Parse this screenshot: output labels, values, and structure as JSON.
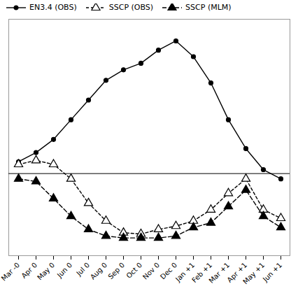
{
  "chart_data": {
    "type": "line",
    "categories": [
      "Mar -0",
      "Apr 0",
      "May 0",
      "Jun 0",
      "Jul 0",
      "Aug 0",
      "Sep 0",
      "Oct 0",
      "Nov 0",
      "Dec 0",
      "Jan +1",
      "Feb +1",
      "Mar +1",
      "Apr +1",
      "May +1",
      "Jun +1"
    ],
    "series": [
      {
        "name": "EN3.4 (OBS)",
        "color": "#000000",
        "marker": "circle",
        "line_style": "solid",
        "values": [
          0.18,
          0.32,
          0.52,
          0.82,
          1.12,
          1.42,
          1.58,
          1.68,
          1.88,
          2.02,
          1.78,
          1.38,
          0.82,
          0.38,
          0.06,
          -0.08
        ]
      },
      {
        "name": "SSCP (OBS)",
        "color": "#000000",
        "marker": "triangle-open",
        "line_style": "dashed",
        "values": [
          0.14,
          0.2,
          0.14,
          -0.08,
          -0.45,
          -0.72,
          -0.9,
          -0.92,
          -0.85,
          -0.8,
          -0.72,
          -0.55,
          -0.3,
          -0.08,
          -0.55,
          -0.68
        ]
      },
      {
        "name": "SSCP (MLM)",
        "color": "#000000",
        "marker": "triangle",
        "line_style": "longdash",
        "values": [
          -0.08,
          -0.12,
          -0.38,
          -0.65,
          -0.85,
          -0.95,
          -0.98,
          -0.98,
          -0.98,
          -0.95,
          -0.82,
          -0.75,
          -0.5,
          -0.25,
          -0.65,
          -0.82
        ]
      }
    ],
    "ylim": [
      -1.25,
      2.35
    ],
    "tick_labels": "x",
    "grid": false,
    "legend": "upper left"
  }
}
